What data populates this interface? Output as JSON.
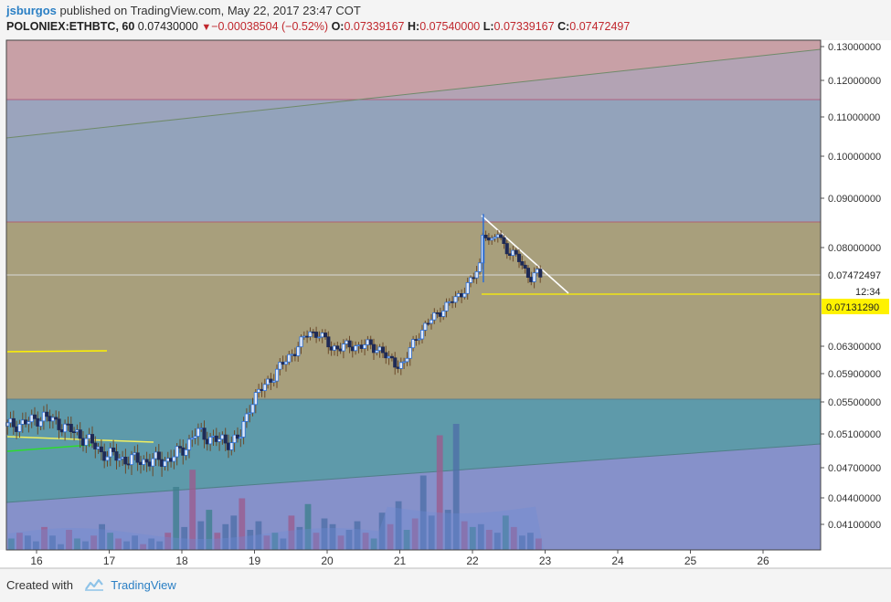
{
  "header": {
    "author": "jsburgos",
    "published": "published on TradingView.com, May 22, 2017 23:47 COT",
    "symbol": "POLONIEX:ETHBTC, 60",
    "last": "0.07430000",
    "change": "−0.00038504 (−0.52%)",
    "o_label": "O:",
    "o": "0.07339167",
    "h_label": "H:",
    "h": "0.07540000",
    "l_label": "L:",
    "l": "0.07339167",
    "c_label": "C:",
    "c": "0.07472497"
  },
  "footer": {
    "created": "Created with",
    "brand": "TradingView"
  },
  "colors": {
    "zone_red": "#c8a0a6",
    "zone_blue": "#93a3bb",
    "zone_olive": "#a89f7c",
    "zone_teal": "#5e9aaa",
    "zone_purple": "#8d8fd0",
    "candle_up": "#2d6fd6",
    "candle_down": "#1f2a55",
    "wick": "#6b4a2a",
    "yellow": "#fff200",
    "green": "#2cdc2c"
  },
  "chart_data": {
    "type": "candlestick",
    "symbol": "POLONIEX:ETHBTC",
    "interval": "60",
    "x_ticks": [
      "16",
      "17",
      "18",
      "19",
      "20",
      "21",
      "22",
      "23",
      "24",
      "25",
      "26"
    ],
    "y_ticks": [
      "0.13000000",
      "0.12000000",
      "0.11000000",
      "0.10000000",
      "0.09000000",
      "0.08000000",
      "0.06300000",
      "0.05900000",
      "0.05500000",
      "0.05100000",
      "0.04700000",
      "0.04400000",
      "0.04100000"
    ],
    "price_labels": {
      "last": "0.07472497",
      "countdown": "12:34",
      "level": "0.07131290"
    },
    "price_path": [
      [
        15.6,
        0.052
      ],
      [
        15.9,
        0.0525
      ],
      [
        16.1,
        0.0532
      ],
      [
        16.4,
        0.0518
      ],
      [
        16.7,
        0.0503
      ],
      [
        16.9,
        0.0488
      ],
      [
        17.2,
        0.048
      ],
      [
        17.5,
        0.0478
      ],
      [
        17.8,
        0.0479
      ],
      [
        18.0,
        0.049
      ],
      [
        18.2,
        0.0512
      ],
      [
        18.4,
        0.0505
      ],
      [
        18.6,
        0.05
      ],
      [
        18.8,
        0.0505
      ],
      [
        18.95,
        0.055
      ],
      [
        19.2,
        0.058
      ],
      [
        19.4,
        0.0605
      ],
      [
        19.6,
        0.063
      ],
      [
        19.75,
        0.0655
      ],
      [
        19.9,
        0.065
      ],
      [
        20.05,
        0.0628
      ],
      [
        20.3,
        0.063
      ],
      [
        20.55,
        0.0632
      ],
      [
        20.75,
        0.0625
      ],
      [
        20.85,
        0.0608
      ],
      [
        21.05,
        0.0603
      ],
      [
        21.25,
        0.065
      ],
      [
        21.5,
        0.0685
      ],
      [
        21.7,
        0.0705
      ],
      [
        21.85,
        0.0722
      ],
      [
        22.0,
        0.0745
      ],
      [
        22.1,
        0.077
      ],
      [
        22.15,
        0.084
      ],
      [
        22.25,
        0.0805
      ],
      [
        22.35,
        0.083
      ],
      [
        22.5,
        0.079
      ],
      [
        22.65,
        0.078
      ],
      [
        22.8,
        0.0745
      ],
      [
        22.9,
        0.0755
      ],
      [
        23.0,
        0.0747
      ]
    ],
    "volume": [
      4,
      6,
      5,
      3,
      8,
      5,
      2,
      7,
      4,
      3,
      5,
      9,
      6,
      4,
      3,
      5,
      2,
      4,
      3,
      6,
      22,
      8,
      28,
      10,
      14,
      6,
      9,
      12,
      18,
      7,
      10,
      5,
      6,
      4,
      12,
      8,
      16,
      6,
      11,
      9,
      5,
      7,
      10,
      6,
      4,
      13,
      9,
      17,
      7,
      11,
      26,
      12,
      40,
      14,
      44,
      10,
      8,
      9,
      7,
      6,
      12,
      8,
      5,
      6,
      4
    ]
  }
}
